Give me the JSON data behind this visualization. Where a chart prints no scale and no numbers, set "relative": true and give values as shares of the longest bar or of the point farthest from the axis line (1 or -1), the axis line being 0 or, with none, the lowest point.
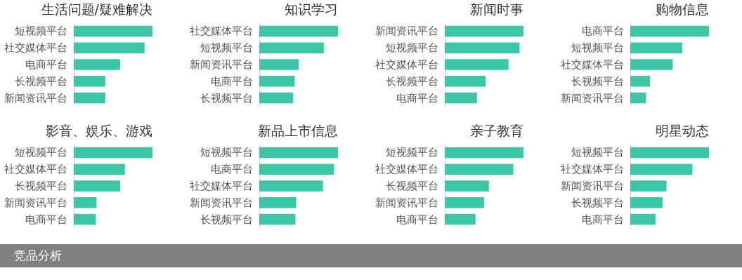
{
  "chart_data": [
    {
      "type": "bar",
      "orientation": "horizontal",
      "relative": true,
      "title": "生活问题/疑难解决",
      "categories": [
        "短视频平台",
        "社交媒体平台",
        "电商平台",
        "长视频平台",
        "新闻资讯平台"
      ],
      "values": [
        1,
        0.9,
        0.59,
        0.4,
        0.4
      ],
      "color": "#3ec5a8"
    },
    {
      "type": "bar",
      "orientation": "horizontal",
      "relative": true,
      "title": "知识学习",
      "categories": [
        "社交媒体平台",
        "短视频平台",
        "新闻资讯平台",
        "电商平台",
        "长视频平台"
      ],
      "values": [
        1,
        0.82,
        0.5,
        0.45,
        0.43
      ],
      "color": "#3ec5a8"
    },
    {
      "type": "bar",
      "orientation": "horizontal",
      "relative": true,
      "title": "新闻时事",
      "categories": [
        "新闻资讯平台",
        "短视频平台",
        "社交媒体平台",
        "长视频平台",
        "电商平台"
      ],
      "values": [
        1,
        0.95,
        0.81,
        0.52,
        0.41
      ],
      "color": "#3ec5a8"
    },
    {
      "type": "bar",
      "orientation": "horizontal",
      "relative": true,
      "title": "购物信息",
      "categories": [
        "电商平台",
        "短视频平台",
        "社交媒体平台",
        "长视频平台",
        "新闻资讯平台"
      ],
      "values": [
        1,
        0.66,
        0.54,
        0.25,
        0.2
      ],
      "color": "#3ec5a8"
    },
    {
      "type": "bar",
      "orientation": "horizontal",
      "relative": true,
      "title": "影音、娱乐、游戏",
      "categories": [
        "短视频平台",
        "社交媒体平台",
        "长视频平台",
        "新闻资讯平台",
        "电商平台"
      ],
      "values": [
        1,
        0.65,
        0.59,
        0.29,
        0.28
      ],
      "color": "#3ec5a8"
    },
    {
      "type": "bar",
      "orientation": "horizontal",
      "relative": true,
      "title": "新品上市信息",
      "categories": [
        "短视频平台",
        "电商平台",
        "社交媒体平台",
        "新闻资讯平台",
        "长视频平台"
      ],
      "values": [
        1,
        0.95,
        0.81,
        0.47,
        0.46
      ],
      "color": "#3ec5a8"
    },
    {
      "type": "bar",
      "orientation": "horizontal",
      "relative": true,
      "title": "亲子教育",
      "categories": [
        "短视频平台",
        "社交媒体平台",
        "长视频平台",
        "新闻资讯平台",
        "电商平台"
      ],
      "values": [
        1,
        0.87,
        0.56,
        0.5,
        0.39
      ],
      "color": "#3ec5a8"
    },
    {
      "type": "bar",
      "orientation": "horizontal",
      "relative": true,
      "title": "明星动态",
      "categories": [
        "短视频平台",
        "社交媒体平台",
        "新闻资讯平台",
        "长视频平台",
        "电商平台"
      ],
      "values": [
        1,
        0.79,
        0.46,
        0.41,
        0.32
      ],
      "color": "#3ec5a8",
      "annotations": [
        "竞品分析"
      ]
    }
  ]
}
